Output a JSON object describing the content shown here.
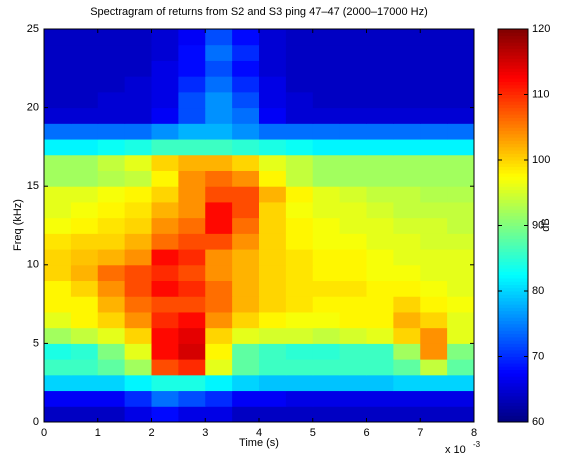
{
  "chart_data": {
    "type": "heatmap",
    "title": "Spectragram of returns from S2 and S3 ping 47–47 (2000–17000 Hz)",
    "x_label": "Time (s)",
    "y_label": "Freq (kHz)",
    "colorbar_label": "dB",
    "x_multiplier": "x 10",
    "x_exponent": "-3",
    "colormap": "jet",
    "x_bins": [
      0,
      0.5,
      1,
      1.5,
      2,
      2.5,
      3,
      3.5,
      4,
      4.5,
      5,
      5.5,
      6,
      6.5,
      7,
      7.5,
      8
    ],
    "y_bins": [
      0,
      1,
      2,
      3,
      4,
      5,
      6,
      7,
      8,
      9,
      10,
      11,
      12,
      13,
      14,
      15,
      16,
      17,
      18,
      19,
      20,
      21,
      22,
      23,
      24,
      25
    ],
    "xlim": [
      0,
      8
    ],
    "ylim": [
      0,
      25
    ],
    "clim": [
      60,
      120
    ],
    "xticks": [
      0,
      1,
      2,
      3,
      4,
      5,
      6,
      7,
      8
    ],
    "yticks": [
      0,
      5,
      10,
      15,
      20,
      25
    ],
    "cticks": [
      60,
      70,
      80,
      90,
      100,
      110,
      120
    ],
    "values": [
      [
        64,
        64,
        64,
        66,
        68,
        66,
        66,
        64,
        64,
        64,
        64,
        64,
        64,
        64,
        64,
        64
      ],
      [
        67,
        67,
        67,
        70,
        74,
        72,
        70,
        67,
        67,
        66,
        66,
        66,
        66,
        66,
        66,
        66
      ],
      [
        80,
        80,
        80,
        82,
        84,
        84,
        82,
        80,
        79,
        79,
        79,
        79,
        79,
        80,
        80,
        80
      ],
      [
        86,
        86,
        88,
        92,
        108,
        110,
        96,
        88,
        86,
        86,
        86,
        86,
        86,
        88,
        94,
        88
      ],
      [
        84,
        85,
        90,
        96,
        112,
        115,
        98,
        88,
        86,
        85,
        85,
        86,
        86,
        92,
        104,
        90
      ],
      [
        92,
        94,
        96,
        100,
        112,
        114,
        100,
        96,
        95,
        95,
        94,
        95,
        96,
        100,
        104,
        96
      ],
      [
        96,
        98,
        100,
        104,
        110,
        112,
        104,
        100,
        98,
        97,
        97,
        98,
        98,
        102,
        100,
        96
      ],
      [
        98,
        98,
        102,
        106,
        108,
        108,
        106,
        102,
        100,
        99,
        98,
        98,
        98,
        100,
        98,
        97
      ],
      [
        98,
        100,
        104,
        108,
        112,
        110,
        106,
        102,
        100,
        99,
        99,
        99,
        98,
        98,
        97,
        96
      ],
      [
        100,
        102,
        106,
        108,
        110,
        108,
        104,
        102,
        100,
        99,
        98,
        98,
        97,
        97,
        96,
        96
      ],
      [
        100,
        101,
        102,
        104,
        112,
        110,
        104,
        102,
        100,
        99,
        98,
        98,
        97,
        96,
        96,
        96
      ],
      [
        99,
        100,
        100,
        102,
        106,
        108,
        108,
        104,
        100,
        98,
        97,
        97,
        96,
        96,
        95,
        95
      ],
      [
        97,
        98,
        99,
        100,
        104,
        106,
        112,
        106,
        100,
        98,
        97,
        96,
        96,
        95,
        95,
        94
      ],
      [
        96,
        97,
        98,
        99,
        102,
        104,
        112,
        108,
        100,
        97,
        96,
        96,
        95,
        94,
        94,
        94
      ],
      [
        96,
        96,
        97,
        98,
        100,
        104,
        108,
        108,
        102,
        98,
        96,
        95,
        94,
        94,
        93,
        93
      ],
      [
        92,
        92,
        93,
        94,
        98,
        104,
        106,
        104,
        98,
        94,
        92,
        92,
        92,
        92,
        92,
        92
      ],
      [
        92,
        92,
        94,
        96,
        100,
        102,
        102,
        100,
        96,
        94,
        92,
        92,
        92,
        92,
        92,
        92
      ],
      [
        82,
        82,
        83,
        84,
        86,
        86,
        86,
        85,
        84,
        83,
        82,
        82,
        82,
        82,
        82,
        82
      ],
      [
        74,
        74,
        74,
        74,
        76,
        78,
        78,
        76,
        74,
        74,
        74,
        74,
        74,
        74,
        74,
        74
      ],
      [
        65,
        65,
        65,
        65,
        67,
        72,
        76,
        74,
        67,
        65,
        65,
        65,
        65,
        65,
        65,
        65
      ],
      [
        64,
        64,
        65,
        65,
        66,
        72,
        76,
        72,
        66,
        65,
        64,
        64,
        64,
        64,
        64,
        64
      ],
      [
        64,
        64,
        64,
        65,
        66,
        70,
        74,
        70,
        66,
        64,
        64,
        64,
        64,
        64,
        64,
        64
      ],
      [
        64,
        64,
        64,
        64,
        66,
        68,
        72,
        68,
        65,
        64,
        64,
        64,
        64,
        64,
        64,
        64
      ],
      [
        64,
        64,
        64,
        64,
        65,
        68,
        74,
        70,
        65,
        64,
        64,
        64,
        64,
        64,
        64,
        64
      ],
      [
        64,
        64,
        64,
        64,
        65,
        67,
        72,
        68,
        65,
        64,
        64,
        64,
        64,
        64,
        64,
        64
      ]
    ]
  }
}
